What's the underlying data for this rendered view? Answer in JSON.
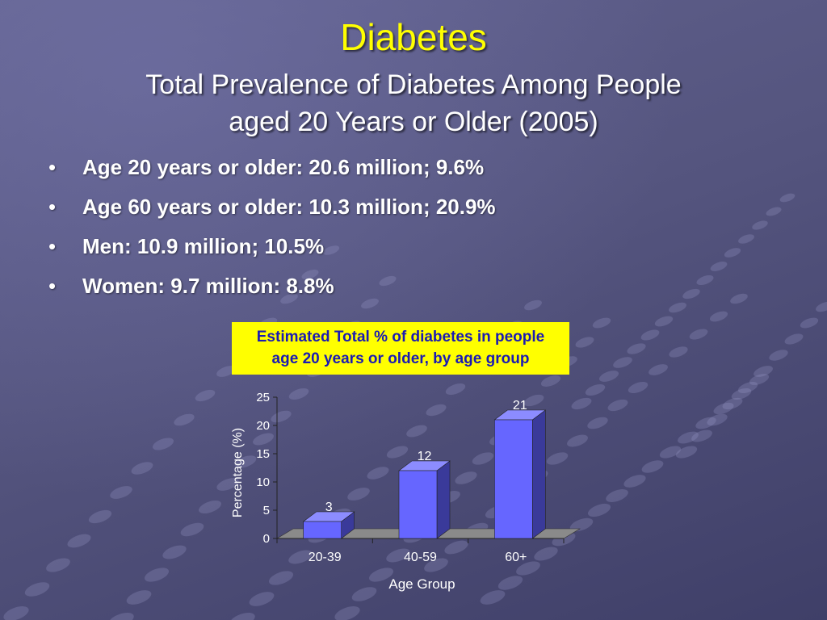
{
  "slide": {
    "title": "Diabetes",
    "subtitle_line1": "Total Prevalence of Diabetes Among People",
    "subtitle_line2": "aged 20 Years or Older (2005)",
    "bullet_symbol": "•",
    "bullets": [
      "Age 20 years or older: 20.6 million; 9.6%",
      "Age 60 years or older: 10.3 million; 20.9%",
      "Men: 10.9 million; 10.5%",
      "Women: 9.7 million: 8.8%"
    ]
  },
  "colors": {
    "title": "#ffff00",
    "caption_bg": "#ffff00",
    "caption_text": "#1a1ab4",
    "bar_front": "#6666ff",
    "bar_side": "#3a3a9a",
    "bar_top": "#8c8cff",
    "floor": "#8a8a8a"
  },
  "chart_data": {
    "type": "bar",
    "title_line1": "Estimated Total % of diabetes in people",
    "title_line2": "age 20 years or older, by age group",
    "categories": [
      "20-39",
      "40-59",
      "60+"
    ],
    "values": [
      3,
      12,
      21
    ],
    "data_labels": [
      "3",
      "12",
      "21"
    ],
    "xlabel": "Age Group",
    "ylabel": "Percentage (%)",
    "ylim": [
      0,
      25
    ],
    "yticks": [
      0,
      5,
      10,
      15,
      20,
      25
    ],
    "ytick_labels": [
      "0",
      "5",
      "10",
      "15",
      "20",
      "25"
    ],
    "grid": false,
    "legend": "none",
    "style": "3d-column"
  }
}
